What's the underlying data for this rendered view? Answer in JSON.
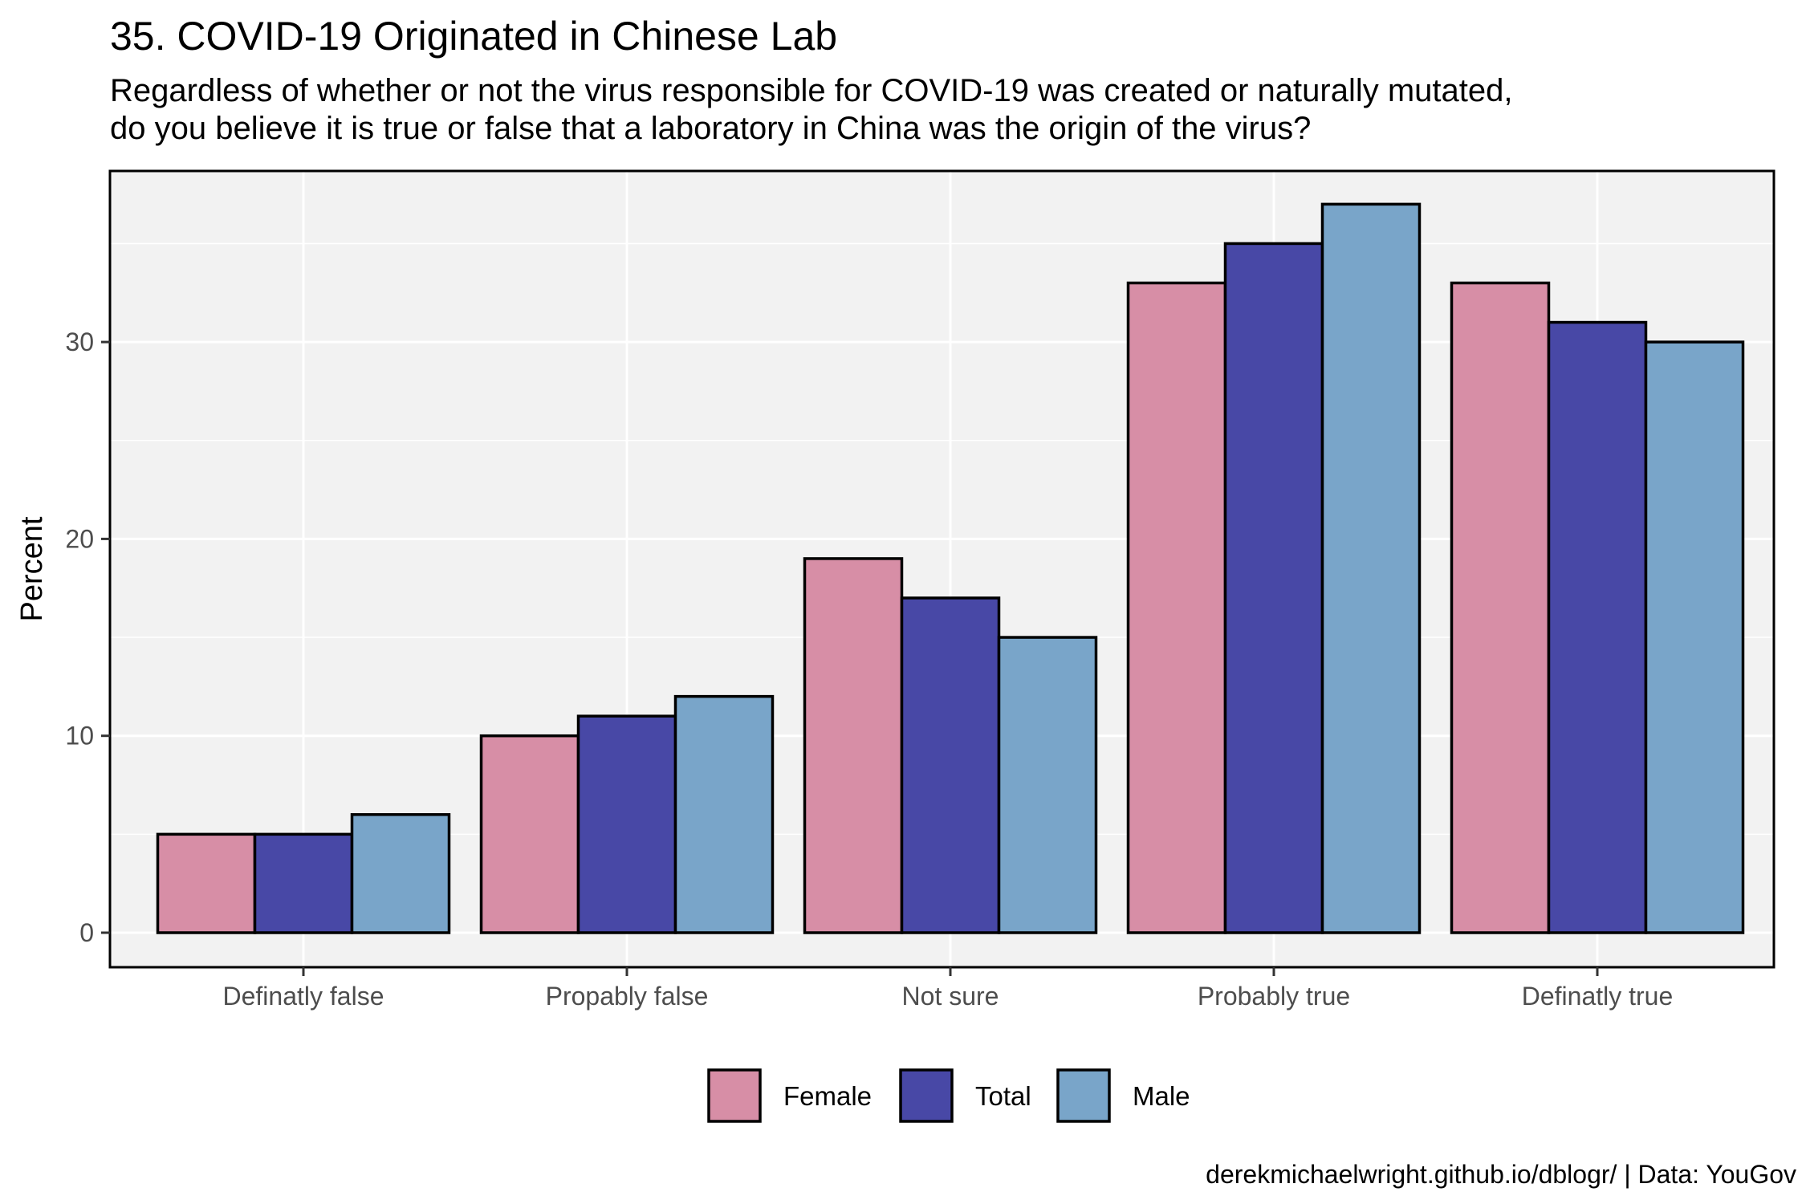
{
  "chart_data": {
    "type": "bar",
    "title": "35. COVID-19 Originated in Chinese Lab",
    "subtitle": [
      "Regardless of whether or not the virus responsible for COVID-19 was created or naturally mutated,",
      "do you believe it is true or false that a laboratory in China was the origin of the virus?"
    ],
    "caption": "derekmichaelwright.github.io/dblogr/ | Data: YouGov",
    "xlabel": "",
    "ylabel": "Percent",
    "ylim": [
      0,
      37
    ],
    "yticks": [
      0,
      10,
      20,
      30
    ],
    "categories": [
      "Definatly false",
      "Propably false",
      "Not sure",
      "Probably true",
      "Definatly true"
    ],
    "series": [
      {
        "name": "Female",
        "color": "#d78ea6",
        "values": [
          5,
          10,
          19,
          33,
          33
        ]
      },
      {
        "name": "Total",
        "color": "#4848a6",
        "values": [
          5,
          11,
          17,
          35,
          31
        ]
      },
      {
        "name": "Male",
        "color": "#79a5c9",
        "values": [
          6,
          12,
          15,
          37,
          30
        ]
      }
    ],
    "grid": true,
    "legend_position": "bottom"
  }
}
